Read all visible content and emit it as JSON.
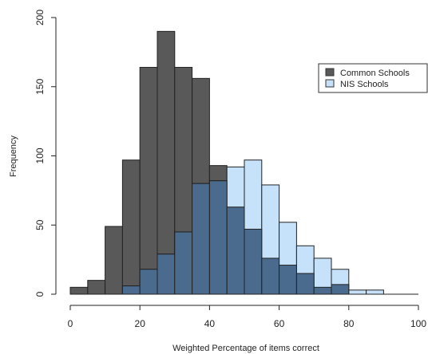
{
  "chart_data": {
    "type": "bar",
    "title": "",
    "xlabel": "Weighted Percentage of items correct",
    "ylabel": "Frequency",
    "xlim": [
      0,
      100
    ],
    "ylim": [
      0,
      200
    ],
    "x_ticks": [
      0,
      20,
      40,
      60,
      80,
      100
    ],
    "y_ticks": [
      0,
      50,
      100,
      150,
      200
    ],
    "bin_width": 5,
    "bin_starts": [
      0,
      5,
      10,
      15,
      20,
      25,
      30,
      35,
      40,
      45,
      50,
      55,
      60,
      65,
      70,
      75,
      80,
      85
    ],
    "grid": false,
    "legend_position": "top-right",
    "series": [
      {
        "name": "Common Schools",
        "color": "#595959",
        "values": [
          5,
          10,
          49,
          97,
          164,
          190,
          164,
          156,
          93,
          63,
          47,
          26,
          21,
          15,
          5,
          7,
          0,
          0
        ]
      },
      {
        "name": "NIS Schools",
        "color": "#c6e2fa",
        "values": [
          0,
          0,
          0,
          6,
          18,
          29,
          45,
          80,
          82,
          92,
          97,
          79,
          52,
          35,
          26,
          18,
          3,
          3
        ]
      }
    ],
    "overlap_color": "#4a6b8d"
  }
}
